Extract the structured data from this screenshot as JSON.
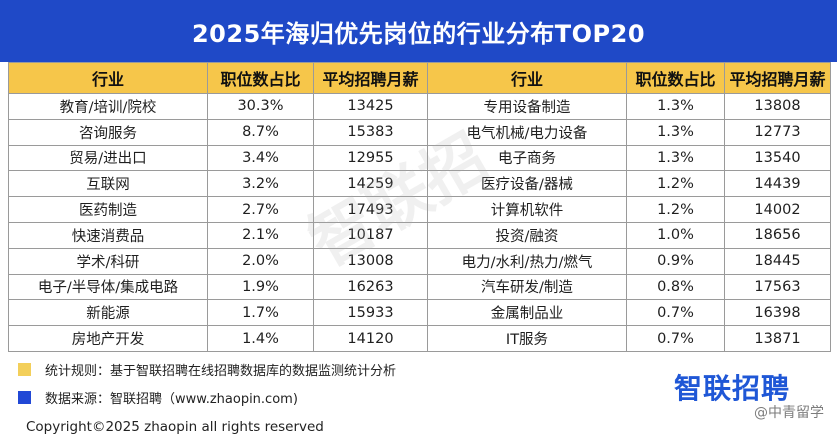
{
  "title": "2025年海归优先岗位的行业分布TOP20",
  "headers": [
    "行业",
    "职位数占比",
    "平均招聘月薪",
    "行业",
    "职位数占比",
    "平均招聘月薪"
  ],
  "rows": [
    {
      "l_industry": "教育/培训/院校",
      "l_share": "30.3%",
      "l_salary": "13425",
      "r_industry": "专用设备制造",
      "r_share": "1.3%",
      "r_salary": "13808"
    },
    {
      "l_industry": "咨询服务",
      "l_share": "8.7%",
      "l_salary": "15383",
      "r_industry": "电气机械/电力设备",
      "r_share": "1.3%",
      "r_salary": "12773"
    },
    {
      "l_industry": "贸易/进出口",
      "l_share": "3.4%",
      "l_salary": "12955",
      "r_industry": "电子商务",
      "r_share": "1.3%",
      "r_salary": "13540"
    },
    {
      "l_industry": "互联网",
      "l_share": "3.2%",
      "l_salary": "14259",
      "r_industry": "医疗设备/器械",
      "r_share": "1.2%",
      "r_salary": "14439"
    },
    {
      "l_industry": "医药制造",
      "l_share": "2.7%",
      "l_salary": "17493",
      "r_industry": "计算机软件",
      "r_share": "1.2%",
      "r_salary": "14002"
    },
    {
      "l_industry": "快速消费品",
      "l_share": "2.1%",
      "l_salary": "10187",
      "r_industry": "投资/融资",
      "r_share": "1.0%",
      "r_salary": "18656"
    },
    {
      "l_industry": "学术/科研",
      "l_share": "2.0%",
      "l_salary": "13008",
      "r_industry": "电力/水利/热力/燃气",
      "r_share": "0.9%",
      "r_salary": "18445"
    },
    {
      "l_industry": "电子/半导体/集成电路",
      "l_share": "1.9%",
      "l_salary": "16263",
      "r_industry": "汽车研发/制造",
      "r_share": "0.8%",
      "r_salary": "17563"
    },
    {
      "l_industry": "新能源",
      "l_share": "1.7%",
      "l_salary": "15933",
      "r_industry": "金属制品业",
      "r_share": "0.7%",
      "r_salary": "16398"
    },
    {
      "l_industry": "房地产开发",
      "l_share": "1.4%",
      "l_salary": "14120",
      "r_industry": "IT服务",
      "r_share": "0.7%",
      "r_salary": "13871"
    }
  ],
  "notes": {
    "rule": "统计规则：基于智联招聘在线招聘数据库的数据监测统计分析",
    "source": "数据来源：智联招聘（www.zhaopin.com)",
    "copyright": "Copyright©2025 zhaopin all rights reserved"
  },
  "brand": "智联招聘",
  "watermark": "智联招",
  "source_mark": "@中青留学",
  "colors": {
    "title_bg": "#1f49c7",
    "header_bg": "#f6c64a",
    "rule_swatch": "#f3cf5a",
    "source_swatch": "#2148d6",
    "brand": "#1f57d6"
  }
}
